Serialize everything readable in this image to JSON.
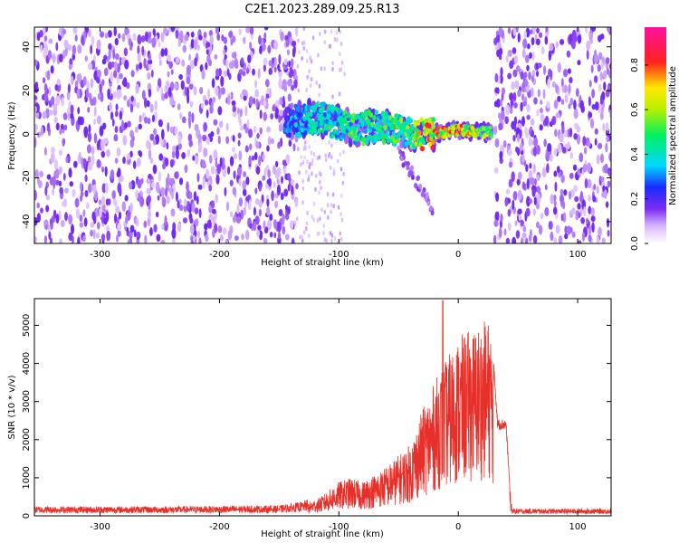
{
  "title": "C2E1.2023.289.09.25.R13",
  "colors": {
    "snr_line": "#e8302a",
    "cloud": "#7b2cf0",
    "axis": "#000000"
  },
  "colorbar": {
    "label": "Normalized spectral amplitude",
    "ticks": [
      "0.0",
      "0.2",
      "0.4",
      "0.6",
      "0.8"
    ],
    "tick_values": [
      0.0,
      0.2,
      0.4,
      0.6,
      0.8
    ],
    "range": [
      0,
      0.97
    ],
    "palette": "rainbow (white-purple-blue-cyan-green-yellow-red-magenta)"
  },
  "chart_data": [
    {
      "type": "heatmap",
      "title": "",
      "xlabel": "Height of straight line (km)",
      "ylabel": "Frequency (Hz)",
      "xlim": [
        -355,
        128
      ],
      "ylim": [
        -50,
        49
      ],
      "x_ticks": [
        -300,
        -200,
        -100,
        0,
        100
      ],
      "y_ticks": [
        -40,
        -20,
        0,
        20,
        40
      ],
      "x_tick_labels": [
        "-300",
        "-200",
        "-100",
        "0",
        "100"
      ],
      "y_tick_labels": [
        "-40",
        "-20",
        "0",
        "20",
        "40"
      ],
      "noise_regions_km": [
        [
          -355,
          -135
        ],
        [
          30,
          128
        ]
      ],
      "quiet_region_km": [
        -135,
        30
      ],
      "signal_ridge": [
        {
          "x": -145,
          "y": 4,
          "z": 0.3
        },
        {
          "x": -125,
          "y": 8,
          "z": 0.45
        },
        {
          "x": -105,
          "y": 6,
          "z": 0.5
        },
        {
          "x": -85,
          "y": 2,
          "z": 0.55
        },
        {
          "x": -70,
          "y": 4,
          "z": 0.5
        },
        {
          "x": -55,
          "y": 2,
          "z": 0.55
        },
        {
          "x": -40,
          "y": 1,
          "z": 0.6
        },
        {
          "x": -25,
          "y": 0,
          "z": 0.85
        },
        {
          "x": -10,
          "y": 1,
          "z": 0.75
        },
        {
          "x": 0,
          "y": 2,
          "z": 0.9
        },
        {
          "x": 15,
          "y": 1,
          "z": 0.7
        },
        {
          "x": 28,
          "y": 1,
          "z": 0.65
        }
      ]
    },
    {
      "type": "line",
      "title": "",
      "xlabel": "Height of straight line (km)",
      "ylabel": "SNR (10 * v/v)",
      "xlim": [
        -355,
        128
      ],
      "ylim": [
        0,
        5700
      ],
      "x_ticks": [
        -300,
        -200,
        -100,
        0,
        100
      ],
      "y_ticks": [
        0,
        1000,
        2000,
        3000,
        4000,
        5000
      ],
      "x_tick_labels": [
        "-300",
        "-200",
        "-100",
        "0",
        "100"
      ],
      "y_tick_labels": [
        "0",
        "1000",
        "2000",
        "3000",
        "4000",
        "5000"
      ],
      "series": [
        {
          "color": "#e8302a",
          "envelope": {
            "x": [
              -355,
              -250,
              -150,
              -130,
              -115,
              -100,
              -90,
              -80,
              -70,
              -60,
              -50,
              -40,
              -30,
              -20,
              -15,
              -10,
              -5,
              0,
              10,
              20,
              27,
              30,
              33,
              40,
              43,
              45,
              60,
              80,
              100,
              128
            ],
            "y": [
              200,
              200,
              220,
              300,
              500,
              900,
              1000,
              900,
              1100,
              1300,
              1600,
              1900,
              2800,
              3500,
              3900,
              4100,
              4400,
              4700,
              4900,
              5100,
              5200,
              4000,
              2500,
              2500,
              900,
              150,
              150,
              150,
              150,
              150
            ]
          },
          "spike": {
            "x": -13,
            "y": 5650
          }
        }
      ]
    }
  ]
}
